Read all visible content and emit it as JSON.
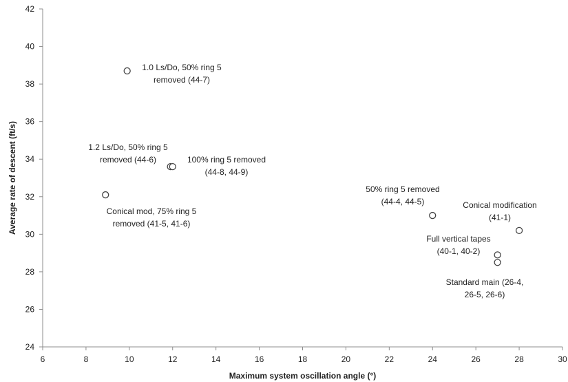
{
  "chart_data": {
    "type": "scatter",
    "title": "",
    "xlabel": "Maximum system oscillation angle (°)",
    "ylabel": "Average rate of descent (ft/s)",
    "xlim": [
      6,
      30
    ],
    "ylim": [
      24,
      42
    ],
    "xticks": [
      6,
      8,
      10,
      12,
      14,
      16,
      18,
      20,
      22,
      24,
      26,
      28,
      30
    ],
    "yticks": [
      24,
      26,
      28,
      30,
      32,
      34,
      36,
      38,
      40,
      42
    ],
    "grid": false,
    "legend": "none",
    "marker": "open-circle",
    "points": [
      {
        "x": 9.9,
        "y": 38.7
      },
      {
        "x": 11.9,
        "y": 33.6
      },
      {
        "x": 12.0,
        "y": 33.6
      },
      {
        "x": 8.9,
        "y": 32.1
      },
      {
        "x": 24.0,
        "y": 31.0
      },
      {
        "x": 28.0,
        "y": 30.2
      },
      {
        "x": 27.0,
        "y": 28.9
      },
      {
        "x": 27.0,
        "y": 28.5
      }
    ],
    "annotations": [
      {
        "lines": [
          "1.0 Ls/Do, 50% ring 5",
          "removed (44-7)"
        ]
      },
      {
        "lines": [
          "1.2 Ls/Do, 50% ring 5",
          "removed (44-6)"
        ]
      },
      {
        "lines": [
          "100% ring 5 removed",
          "(44-8, 44-9)"
        ]
      },
      {
        "lines": [
          "Conical mod, 75% ring 5",
          "removed (41-5, 41-6)"
        ]
      },
      {
        "lines": [
          "50% ring 5 removed",
          "(44-4, 44-5)"
        ]
      },
      {
        "lines": [
          "Conical modification",
          "(41-1)"
        ]
      },
      {
        "lines": [
          "Full vertical tapes",
          "(40-1, 40-2)"
        ]
      },
      {
        "lines": [
          "Standard main (26-4,",
          "26-5, 26-6)"
        ]
      }
    ],
    "colors": {
      "axis": "#8c8c8c",
      "marker_stroke": "#444444",
      "marker_fill": "#ffffff",
      "text": "#222222"
    }
  }
}
